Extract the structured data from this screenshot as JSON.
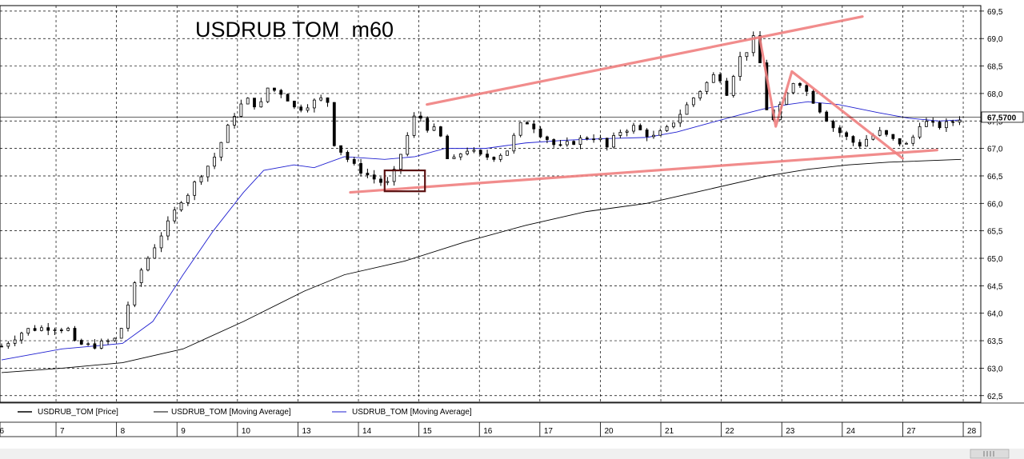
{
  "chart_data": {
    "type": "candlestick",
    "title": "USDRUB TOM  m60",
    "ylim": [
      62.38,
      69.6
    ],
    "y_ticks": [
      "69,5",
      "69,0",
      "68,5",
      "68,0",
      "67,5",
      "67,0",
      "66,5",
      "66,0",
      "65,5",
      "65,0",
      "64,5",
      "64,0",
      "63,5",
      "63,0",
      "62,5"
    ],
    "y_tick_values": [
      69.5,
      69.0,
      68.5,
      68.0,
      67.5,
      67.0,
      66.5,
      66.0,
      65.5,
      65.0,
      64.5,
      64.0,
      63.5,
      63.0,
      62.5
    ],
    "last_price_label": "67,5700",
    "last_price": 67.57,
    "grid": true,
    "x_ticks": [
      "6",
      "7",
      "8",
      "9",
      "10",
      "13",
      "14",
      "15",
      "16",
      "17",
      "20",
      "21",
      "22",
      "23",
      "24",
      "27",
      "28"
    ],
    "legend": [
      {
        "label": "USDRUB_TOM [Price]",
        "color": "#000000"
      },
      {
        "label": "USDRUB_TOM [Moving Average]",
        "color": "#000000"
      },
      {
        "label": "USDRUB_TOM [Moving Average]",
        "color": "#1f1fd0"
      }
    ],
    "price_path": [
      [
        0,
        63.4
      ],
      [
        1.2,
        63.7
      ],
      [
        2.5,
        63.75
      ],
      [
        3.4,
        63.7
      ],
      [
        3.6,
        63.45
      ],
      [
        4.5,
        63.4
      ],
      [
        5.4,
        63.5
      ],
      [
        5.8,
        63.55
      ],
      [
        6.3,
        64.2
      ],
      [
        6.8,
        64.7
      ],
      [
        7.4,
        65.1
      ],
      [
        8.1,
        65.55
      ],
      [
        8.5,
        65.75
      ],
      [
        8.7,
        66.0
      ],
      [
        9.3,
        66.2
      ],
      [
        9.8,
        66.5
      ],
      [
        10.5,
        66.8
      ],
      [
        11,
        67.2
      ],
      [
        11.5,
        67.6
      ],
      [
        12.1,
        67.9
      ],
      [
        12.8,
        67.75
      ],
      [
        13.2,
        68.1
      ],
      [
        14,
        68.0
      ],
      [
        14.6,
        67.7
      ],
      [
        15.8,
        67.9
      ],
      [
        16.2,
        67.85
      ],
      [
        16.5,
        67.1
      ],
      [
        17.4,
        66.7
      ],
      [
        18,
        66.55
      ],
      [
        18.7,
        66.4
      ],
      [
        19.3,
        66.35
      ],
      [
        19.5,
        66.6
      ],
      [
        19.8,
        66.9
      ],
      [
        20.3,
        67.4
      ],
      [
        20.6,
        67.7
      ],
      [
        21,
        67.4
      ],
      [
        21.7,
        67.3
      ],
      [
        22.2,
        66.7
      ],
      [
        23,
        67.0
      ],
      [
        23.8,
        66.85
      ],
      [
        24.5,
        66.85
      ],
      [
        25.2,
        67.0
      ],
      [
        25.6,
        67.4
      ],
      [
        26.2,
        67.5
      ],
      [
        26.6,
        67.3
      ],
      [
        27,
        67.2
      ],
      [
        27.6,
        67.0
      ],
      [
        28.2,
        67.1
      ],
      [
        29,
        67.2
      ],
      [
        29.6,
        67.2
      ],
      [
        30,
        67.0
      ],
      [
        30.6,
        67.3
      ],
      [
        31.3,
        67.4
      ],
      [
        31.8,
        67.3
      ],
      [
        32.3,
        67.2
      ],
      [
        33,
        67.35
      ],
      [
        33.8,
        67.7
      ],
      [
        34.5,
        68.0
      ],
      [
        35,
        68.2
      ],
      [
        35.5,
        68.4
      ],
      [
        36,
        68.0
      ],
      [
        36.5,
        68.6
      ],
      [
        37,
        68.8
      ],
      [
        37.3,
        69.0
      ],
      [
        37.6,
        68.6
      ],
      [
        38.0,
        67.6
      ],
      [
        38.3,
        67.5
      ],
      [
        38.8,
        67.9
      ],
      [
        39.4,
        68.3
      ],
      [
        40,
        68.0
      ],
      [
        40.6,
        67.7
      ],
      [
        41.2,
        67.4
      ],
      [
        41.9,
        67.2
      ],
      [
        42.5,
        67.05
      ],
      [
        43,
        67.2
      ],
      [
        43.6,
        67.3
      ],
      [
        44.2,
        67.15
      ],
      [
        45,
        67.05
      ],
      [
        45.6,
        67.5
      ],
      [
        46.4,
        67.4
      ],
      [
        47,
        67.45
      ],
      [
        47.6,
        67.57
      ]
    ],
    "ma_fast_blue": [
      [
        0,
        63.15
      ],
      [
        3,
        63.35
      ],
      [
        6,
        63.45
      ],
      [
        7.5,
        63.85
      ],
      [
        9,
        64.7
      ],
      [
        10.5,
        65.5
      ],
      [
        12,
        66.2
      ],
      [
        13,
        66.6
      ],
      [
        14.5,
        66.7
      ],
      [
        15.5,
        66.65
      ],
      [
        17,
        66.85
      ],
      [
        19,
        66.8
      ],
      [
        20.5,
        66.85
      ],
      [
        22,
        67.0
      ],
      [
        24,
        67.0
      ],
      [
        26,
        67.1
      ],
      [
        28,
        67.15
      ],
      [
        30,
        67.18
      ],
      [
        32,
        67.2
      ],
      [
        33.5,
        67.3
      ],
      [
        35,
        67.45
      ],
      [
        36.5,
        67.6
      ],
      [
        37.8,
        67.72
      ],
      [
        39,
        67.8
      ],
      [
        40,
        67.85
      ],
      [
        41.5,
        67.8
      ],
      [
        43.5,
        67.65
      ],
      [
        45,
        67.55
      ],
      [
        46.5,
        67.5
      ],
      [
        47.6,
        67.52
      ]
    ],
    "ma_slow_black": [
      [
        0,
        62.92
      ],
      [
        3,
        63.0
      ],
      [
        6,
        63.1
      ],
      [
        9,
        63.35
      ],
      [
        12,
        63.85
      ],
      [
        15,
        64.4
      ],
      [
        17,
        64.7
      ],
      [
        20,
        64.95
      ],
      [
        23,
        65.3
      ],
      [
        26,
        65.6
      ],
      [
        29,
        65.85
      ],
      [
        32,
        66.0
      ],
      [
        35,
        66.25
      ],
      [
        38,
        66.5
      ],
      [
        40,
        66.62
      ],
      [
        42,
        66.7
      ],
      [
        44,
        66.75
      ],
      [
        47.6,
        66.8
      ]
    ],
    "annotations": {
      "channel_upper": [
        [
          21.1,
          67.8
        ],
        [
          42.7,
          69.4
        ]
      ],
      "channel_lower": [
        [
          17.3,
          66.2
        ],
        [
          46.4,
          66.97
        ]
      ],
      "zigzag": [
        [
          37.6,
          69.02
        ],
        [
          38.4,
          67.4
        ],
        [
          39.2,
          68.4
        ],
        [
          44.7,
          66.82
        ]
      ],
      "box": [
        [
          19.0,
          66.6
        ],
        [
          21.0,
          66.22
        ]
      ],
      "upper_color": "#f08080",
      "box_color": "#5a1010"
    }
  }
}
